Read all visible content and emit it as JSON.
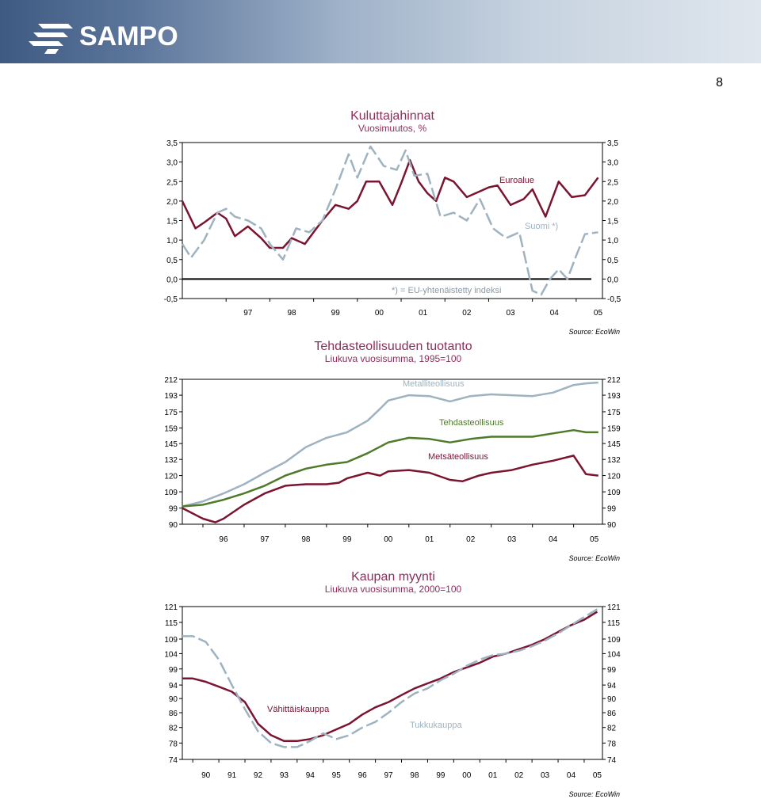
{
  "header": {
    "logo_text": "SAMPO",
    "bg_color": "#5c769b"
  },
  "page_number": "8",
  "chart_data": [
    {
      "type": "line",
      "title": "Kuluttajahinnat",
      "subtitle": "Vuosimuutos, %",
      "xlabel": "",
      "ylabel": "",
      "x_ticks": [
        "97",
        "98",
        "99",
        "00",
        "01",
        "02",
        "03",
        "04",
        "05"
      ],
      "y_ticks": [
        "3,5",
        "3,0",
        "2,5",
        "2,0",
        "1,5",
        "1,0",
        "0,5",
        "0,0",
        "-0,5"
      ],
      "ylim": [
        -0.5,
        3.5
      ],
      "xlim": [
        1996.0,
        2005.6
      ],
      "zero_line": true,
      "grid": false,
      "annotation": "*) = EU-yhtenäistetty indeksi",
      "source": "Source: EcoWin",
      "series": [
        {
          "name": "Euroalue",
          "color": "#7b1430",
          "dash": false,
          "x": [
            1996.0,
            1996.3,
            1996.5,
            1996.8,
            1997.0,
            1997.2,
            1997.5,
            1997.8,
            1998.0,
            1998.3,
            1998.5,
            1998.8,
            1999.0,
            1999.2,
            1999.5,
            1999.8,
            2000.0,
            2000.2,
            2000.5,
            2000.8,
            2001.0,
            2001.2,
            2001.4,
            2001.6,
            2001.8,
            2002.0,
            2002.2,
            2002.5,
            2002.8,
            2003.0,
            2003.2,
            2003.5,
            2003.8,
            2004.0,
            2004.3,
            2004.6,
            2004.9,
            2005.2,
            2005.5
          ],
          "y": [
            2.0,
            1.3,
            1.45,
            1.7,
            1.55,
            1.1,
            1.35,
            1.05,
            0.8,
            0.8,
            1.05,
            0.9,
            1.2,
            1.5,
            1.9,
            1.8,
            2.0,
            2.5,
            2.5,
            1.9,
            2.45,
            3.05,
            2.5,
            2.2,
            2.0,
            2.6,
            2.5,
            2.1,
            2.25,
            2.35,
            2.4,
            1.9,
            2.05,
            2.3,
            1.6,
            2.5,
            2.1,
            2.15,
            2.6
          ]
        },
        {
          "name": "Suomi *)",
          "color": "#9eb3bf",
          "dash": true,
          "x": [
            1996.0,
            1996.2,
            1996.5,
            1996.8,
            1997.0,
            1997.2,
            1997.5,
            1997.8,
            1998.0,
            1998.3,
            1998.6,
            1998.9,
            1999.2,
            1999.5,
            1999.8,
            2000.0,
            2000.3,
            2000.6,
            2000.9,
            2001.1,
            2001.3,
            2001.6,
            2001.9,
            2002.2,
            2002.5,
            2002.8,
            2003.1,
            2003.4,
            2003.7,
            2004.0,
            2004.2,
            2004.4,
            2004.6,
            2004.8,
            2005.0,
            2005.2,
            2005.5
          ],
          "y": [
            0.9,
            0.55,
            1.0,
            1.7,
            1.8,
            1.6,
            1.5,
            1.3,
            0.9,
            0.5,
            1.3,
            1.2,
            1.5,
            2.3,
            3.2,
            2.6,
            3.4,
            2.9,
            2.8,
            3.3,
            2.65,
            2.7,
            1.6,
            1.7,
            1.5,
            2.05,
            1.3,
            1.05,
            1.2,
            -0.3,
            -0.4,
            0.0,
            0.25,
            0.0,
            0.6,
            1.15,
            1.2
          ]
        }
      ]
    },
    {
      "type": "line",
      "title": "Tehdasteollisuuden tuotanto",
      "subtitle": "Liukuva vuosisumma, 1995=100",
      "xlabel": "",
      "ylabel": "",
      "x_ticks": [
        "96",
        "97",
        "98",
        "99",
        "00",
        "01",
        "02",
        "03",
        "04",
        "05"
      ],
      "y_ticks": [
        "212",
        "193",
        "175",
        "159",
        "145",
        "132",
        "120",
        "109",
        "99",
        "90"
      ],
      "ylim": [
        90,
        212
      ],
      "xlim": [
        1995.5,
        2005.7
      ],
      "scale": "log",
      "grid": false,
      "source": "Source: EcoWin",
      "series": [
        {
          "name": "Metalliteollisuus",
          "color": "#9eb3bf",
          "x": [
            1995.5,
            1996.0,
            1996.5,
            1997.0,
            1997.5,
            1998.0,
            1998.5,
            1999.0,
            1999.5,
            2000.0,
            2000.3,
            2000.5,
            2001.0,
            2001.5,
            2002.0,
            2002.5,
            2003.0,
            2003.5,
            2004.0,
            2004.5,
            2005.0,
            2005.3,
            2005.6
          ],
          "y": [
            100,
            103,
            108,
            114,
            122,
            130,
            142,
            150,
            155,
            166,
            178,
            187,
            193,
            192,
            186,
            192,
            194,
            193,
            192,
            196,
            205,
            207,
            208
          ]
        },
        {
          "name": "Tehdasteollisuus",
          "color": "#4f7a2a",
          "x": [
            1995.5,
            1996.0,
            1996.5,
            1997.0,
            1997.5,
            1998.0,
            1998.5,
            1999.0,
            1999.5,
            2000.0,
            2000.5,
            2001.0,
            2001.5,
            2002.0,
            2002.5,
            2003.0,
            2003.5,
            2004.0,
            2004.5,
            2005.0,
            2005.3,
            2005.6
          ],
          "y": [
            100,
            101,
            104,
            108,
            113,
            120,
            125,
            128,
            130,
            137,
            146,
            150,
            149,
            146,
            149,
            151,
            151,
            151,
            154,
            157,
            155,
            155
          ]
        },
        {
          "name": "Metsäteollisuus",
          "color": "#7b1430",
          "x": [
            1995.5,
            1996.0,
            1996.3,
            1996.5,
            1997.0,
            1997.5,
            1998.0,
            1998.5,
            1999.0,
            1999.3,
            1999.5,
            2000.0,
            2000.3,
            2000.5,
            2001.0,
            2001.5,
            2002.0,
            2002.3,
            2002.7,
            2003.0,
            2003.5,
            2004.0,
            2004.5,
            2005.0,
            2005.3,
            2005.6
          ],
          "y": [
            99,
            93,
            91,
            93,
            101,
            108,
            113,
            114,
            114,
            115,
            118,
            122,
            120,
            123,
            124,
            122,
            117,
            116,
            120,
            122,
            124,
            128,
            131,
            135,
            121,
            120
          ]
        }
      ]
    },
    {
      "type": "line",
      "title": "Kaupan myynti",
      "subtitle": "Liukuva vuosisumma, 2000=100",
      "xlabel": "",
      "ylabel": "",
      "x_ticks": [
        "90",
        "91",
        "92",
        "93",
        "94",
        "95",
        "96",
        "97",
        "98",
        "99",
        "00",
        "01",
        "02",
        "03",
        "04",
        "05"
      ],
      "y_ticks": [
        "121",
        "115",
        "109",
        "104",
        "99",
        "94",
        "90",
        "86",
        "82",
        "78",
        "74"
      ],
      "ylim": [
        74,
        121
      ],
      "xlim": [
        1989.6,
        2005.7
      ],
      "scale": "log",
      "grid": false,
      "source": "Source: EcoWin",
      "series": [
        {
          "name": "Vähittäiskauppa",
          "color": "#7b1430",
          "x": [
            1989.6,
            1990.0,
            1990.5,
            1991.0,
            1991.5,
            1992.0,
            1992.5,
            1993.0,
            1993.5,
            1994.0,
            1994.5,
            1995.0,
            1995.5,
            1996.0,
            1996.5,
            1997.0,
            1997.5,
            1998.0,
            1998.5,
            1999.0,
            1999.5,
            2000.0,
            2000.5,
            2001.0,
            2001.5,
            2002.0,
            2002.5,
            2003.0,
            2003.5,
            2004.0,
            2004.5,
            2005.0,
            2005.5
          ],
          "y": [
            96,
            96,
            95,
            93.5,
            92,
            89,
            83,
            80,
            78.5,
            78.5,
            79,
            80,
            81.5,
            83,
            85.5,
            87.5,
            89,
            91,
            93,
            94.5,
            96,
            98,
            99.5,
            101,
            103,
            104,
            105.5,
            107,
            109,
            111.5,
            114,
            116,
            119
          ]
        },
        {
          "name": "Tukkukauppa",
          "color": "#9eb3bf",
          "dash": true,
          "x": [
            1989.6,
            1990.0,
            1990.5,
            1991.0,
            1991.5,
            1992.0,
            1992.5,
            1993.0,
            1993.5,
            1994.0,
            1994.5,
            1995.0,
            1995.5,
            1996.0,
            1996.5,
            1997.0,
            1997.5,
            1998.0,
            1998.5,
            1999.0,
            1999.5,
            2000.0,
            2000.5,
            2001.0,
            2001.5,
            2002.0,
            2002.5,
            2003.0,
            2003.5,
            2004.0,
            2004.5,
            2005.0,
            2005.5
          ],
          "y": [
            110,
            110,
            108,
            102,
            94,
            87,
            81,
            78,
            77,
            77,
            78.5,
            80.5,
            79,
            80,
            82,
            83.5,
            86,
            89,
            91.5,
            93,
            95.5,
            97.5,
            100,
            102,
            103.5,
            104,
            105,
            106.5,
            108.5,
            111,
            114,
            117,
            120
          ]
        }
      ]
    }
  ]
}
